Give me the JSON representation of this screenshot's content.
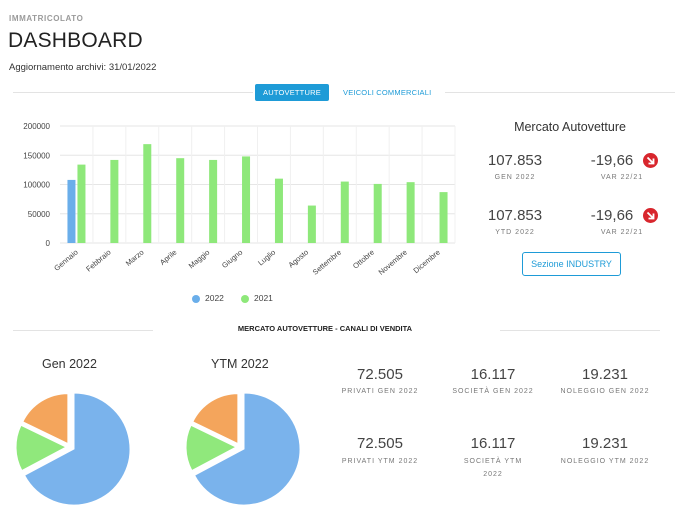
{
  "header": {
    "kicker": "IMMATRICOLATO",
    "title": "DASHBOARD",
    "updated_label": "Aggiornamento archivi:",
    "updated_value": "31/01/2022"
  },
  "tabs": [
    {
      "label": "AUTOVETTURE",
      "active": true
    },
    {
      "label": "VEICOLI COMMERCIALI",
      "active": false
    }
  ],
  "colors": {
    "series_2022": "#6aaeea",
    "series_2021": "#8ee87a",
    "accent": "#1e9bd7",
    "down": "#d8262d",
    "pie_privati": "#7ab3ec",
    "pie_societa": "#90e87c",
    "pie_noleggio": "#f4a55c"
  },
  "chart_data": {
    "type": "bar",
    "categories": [
      "Gennaio",
      "Febbraio",
      "Marzo",
      "Aprile",
      "Maggio",
      "Giugno",
      "Luglio",
      "Agosto",
      "Settembre",
      "Ottobre",
      "Novembre",
      "Dicembre"
    ],
    "series": [
      {
        "name": "2022",
        "values": [
          107853,
          null,
          null,
          null,
          null,
          null,
          null,
          null,
          null,
          null,
          null,
          null
        ]
      },
      {
        "name": "2021",
        "values": [
          134000,
          142000,
          169000,
          145000,
          142000,
          148000,
          110000,
          64000,
          105000,
          101000,
          104000,
          87000
        ]
      }
    ],
    "yticks": [
      "200000",
      "150000",
      "100000",
      "50000",
      "0"
    ],
    "ylim": [
      0,
      200000
    ],
    "legend_position": "bottom"
  },
  "market": {
    "title": "Mercato Autovetture",
    "rows": [
      {
        "value": "107.853",
        "label": "GEN 2022",
        "var_value": "-19,66",
        "var_label": "VAR 22/21",
        "icon": "arrow-down-right-icon"
      },
      {
        "value": "107.853",
        "label": "YTD 2022",
        "var_value": "-19,66",
        "var_label": "VAR 22/21",
        "icon": "arrow-down-right-icon"
      }
    ],
    "button": "Sezione INDUSTRY"
  },
  "channels": {
    "title": "MERCATO AUTOVETTURE - CANALI DI VENDITA",
    "pies": [
      {
        "title": "Gen 2022",
        "slices": [
          {
            "name": "privati",
            "value": 72505
          },
          {
            "name": "societa",
            "value": 16117
          },
          {
            "name": "noleggio",
            "value": 19231
          }
        ]
      },
      {
        "title": "YTM 2022",
        "slices": [
          {
            "name": "privati",
            "value": 72505
          },
          {
            "name": "societa",
            "value": 16117
          },
          {
            "name": "noleggio",
            "value": 19231
          }
        ]
      }
    ],
    "stats": [
      {
        "value": "72.505",
        "label": "PRIVATI GEN 2022"
      },
      {
        "value": "16.117",
        "label": "SOCIETÀ GEN 2022"
      },
      {
        "value": "19.231",
        "label": "NOLEGGIO GEN 2022"
      },
      {
        "value": "72.505",
        "label": "PRIVATI YTM 2022"
      },
      {
        "value": "16.117",
        "label": "SOCIETÀ YTM 2022"
      },
      {
        "value": "19.231",
        "label": "NOLEGGIO YTM 2022"
      }
    ]
  }
}
